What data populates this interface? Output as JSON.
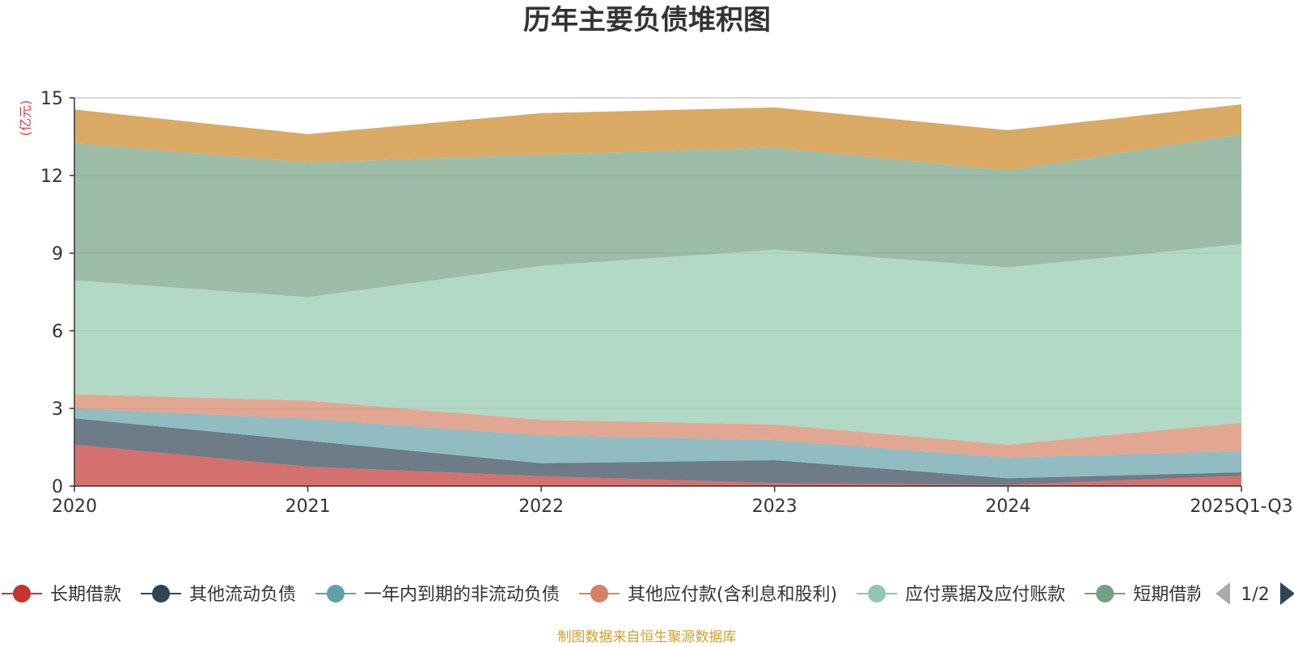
{
  "title": "历年主要负债堆积图",
  "footer": "制图数据来自恒生聚源数据库",
  "colors": {
    "title": "#333333",
    "footer": "#d4a02a",
    "unit_label": "#e03c3c",
    "axis": "#333333",
    "grid": "#cccccc",
    "page_prev": "#aaaaaa",
    "page_next": "#2f4554"
  },
  "legend_page": "1/2",
  "legend_icons": {
    "prev": "triangle-left-icon",
    "next": "triangle-right-icon"
  },
  "chart_data": {
    "type": "area",
    "stacked": true,
    "unit_label": "(亿元)",
    "categories": [
      "2020",
      "2021",
      "2022",
      "2023",
      "2024",
      "2025Q1-Q3"
    ],
    "y_ticks": [
      "0",
      "3",
      "6",
      "9",
      "12",
      "15"
    ],
    "ylim": [
      0,
      15
    ],
    "grid": true,
    "legend_position": "bottom",
    "series": [
      {
        "name": "长期借款",
        "color": "#c23531",
        "values": [
          1.6,
          0.75,
          0.38,
          0.12,
          0.05,
          0.4
        ]
      },
      {
        "name": "其他流动负债",
        "color": "#2f4554",
        "values": [
          1.02,
          1.0,
          0.5,
          0.88,
          0.25,
          0.13
        ]
      },
      {
        "name": "一年内到期的非流动负债",
        "color": "#61a0a8",
        "values": [
          0.38,
          0.85,
          1.08,
          0.78,
          0.8,
          0.82
        ]
      },
      {
        "name": "其他应付款(含利息和股利)",
        "color": "#d48265",
        "values": [
          0.55,
          0.7,
          0.6,
          0.6,
          0.5,
          1.1
        ]
      },
      {
        "name": "应付票据及应付账款",
        "color": "#91c7ae",
        "values": [
          4.4,
          4.0,
          5.95,
          6.75,
          6.85,
          6.9
        ]
      },
      {
        "name": "短期借款",
        "color": "#749f83",
        "values": [
          5.3,
          5.2,
          4.3,
          3.95,
          3.75,
          4.25
        ]
      },
      {
        "name": "",
        "color": "#ca8622",
        "values": [
          1.3,
          1.1,
          1.6,
          1.55,
          1.55,
          1.15
        ]
      }
    ]
  }
}
